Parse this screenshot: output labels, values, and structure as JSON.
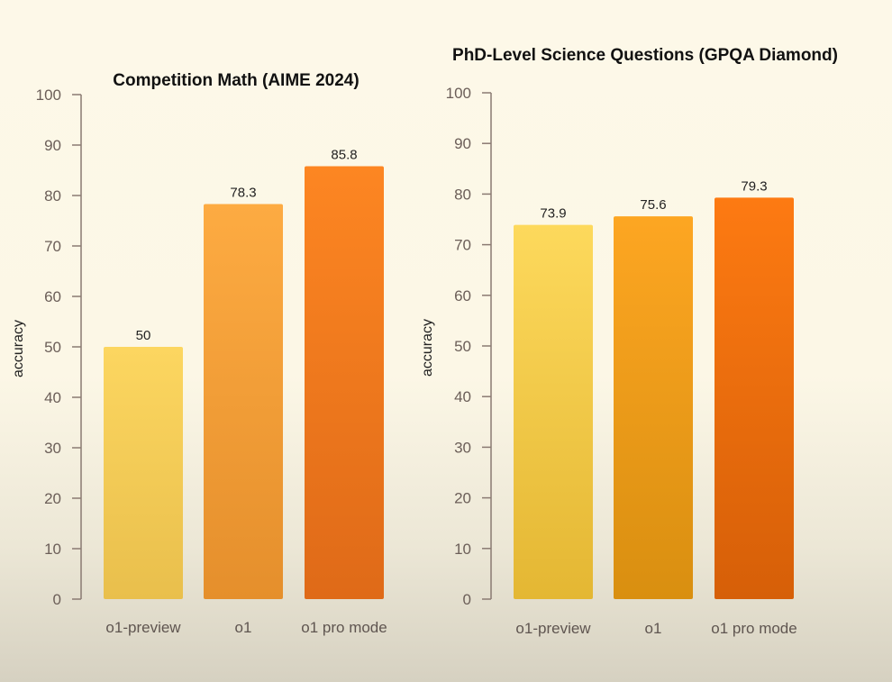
{
  "chart_data": [
    {
      "type": "bar",
      "title": "Competition Math (AIME 2024)",
      "xlabel": "",
      "ylabel": "accuracy",
      "ylim": [
        0,
        100
      ],
      "yticks": [
        0,
        10,
        20,
        30,
        40,
        50,
        60,
        70,
        80,
        90,
        100
      ],
      "categories": [
        "o1-preview",
        "o1",
        "o1 pro mode"
      ],
      "values": [
        50,
        78.3,
        85.8
      ],
      "value_labels": [
        "50",
        "78.3",
        "85.8"
      ],
      "colors": [
        [
          "#fcd660",
          "#e9bf4c"
        ],
        [
          "#fdab42",
          "#e58f2c"
        ],
        [
          "#fd8622",
          "#df6a18"
        ]
      ],
      "grid": false
    },
    {
      "type": "bar",
      "title": "PhD-Level Science Questions (GPQA Diamond)",
      "xlabel": "",
      "ylabel": "accuracy",
      "ylim": [
        0,
        100
      ],
      "yticks": [
        0,
        10,
        20,
        30,
        40,
        50,
        60,
        70,
        80,
        90,
        100
      ],
      "categories": [
        "o1-preview",
        "o1",
        "o1 pro mode"
      ],
      "values": [
        73.9,
        75.6,
        79.3
      ],
      "value_labels": [
        "73.9",
        "75.6",
        "79.3"
      ],
      "colors": [
        [
          "#fdd95c",
          "#e4b733"
        ],
        [
          "#fda622",
          "#d98f10"
        ],
        [
          "#fd7a12",
          "#d65f08"
        ]
      ],
      "grid": false
    }
  ]
}
